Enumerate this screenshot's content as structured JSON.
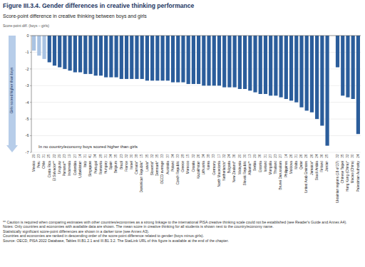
{
  "chart_data": {
    "type": "bar",
    "title": "Figure III.3.4. Gender differences in creative thinking performance",
    "subtitle": "Score-point difference in creative thinking between boys and girls",
    "ylabel": "Score-point diff. (boys – girls)",
    "annotations": [
      "Girls scored higher than boys",
      "In no country/economy boys scored higher than girls"
    ],
    "notes": [
      "** Caution is required when comparing estimates with other countries/economies as a strong linkage to the international PISA creative thinking scale could not be established (see Reader's Guide and Annex A4).",
      "Notes: Only countries and economies with available data are shown. The mean score in creative thinking for all students is shown next to the country/economy name.",
      "Statistically significant score-point differences are shown in a darker tone (see Annex A3).",
      "Countries and economies are ranked in descending order of the score-point difference related to gender (boys minus girls).",
      "Source: OECD, PISA 2022 Database, Tables III.B1.2.1 and III.B1.3.2. The StatLink URL of this figure is available at the end of the chapter."
    ],
    "categories": [
      "Mexico",
      "Peru",
      "Chile",
      "Costa Rica",
      "El Salvador**",
      "Uruguay",
      "Panama**",
      "Indonesia",
      "Colombia",
      "Uzbekistan",
      "Italy",
      "Singapore",
      "Portugal",
      "Romania",
      "Hungary",
      "Spain",
      "Belgium",
      "Brazil",
      "France",
      "Israel",
      "Canada*",
      "Dominican Republic*",
      "Latvia*",
      "Slovenia*",
      "Denmark*",
      "OECD average",
      "Australia",
      "Poland",
      "Czech Republic",
      "Greece",
      "Morocco",
      "Croatia",
      "Kazakhstan",
      "Lithuania",
      "Korea",
      "Germany",
      "North Macedonia",
      "Netherlands*",
      "Bulgaria",
      "New Zealand*",
      "Malaysia",
      "Slovak Republic",
      "Albania**",
      "Serbia",
      "Estonia",
      "Iceland",
      "Mongolia",
      "Thailand",
      "Brunei Darussalam",
      "Philippines",
      "Moldova",
      "Malta",
      "Qatar",
      "United Arab Emirates",
      "Jamaica*",
      "Saudi Arabia",
      "Finland",
      "Jordan",
      null,
      "Ukrainian regions (18 of 27)",
      "Chinese Taipei",
      "Hong Kong (China)*",
      "Macao (China)",
      "Palestinian Authority"
    ],
    "values": [
      -0.9,
      -1.2,
      -1.4,
      -1.6,
      -1.8,
      -1.9,
      -2.0,
      -2.1,
      -2.2,
      -2.2,
      -2.3,
      -2.3,
      -2.4,
      -2.4,
      -2.5,
      -2.5,
      -2.5,
      -2.6,
      -2.6,
      -2.6,
      -2.6,
      -2.6,
      -2.7,
      -2.7,
      -2.7,
      -2.7,
      -2.7,
      -2.8,
      -2.8,
      -2.8,
      -2.9,
      -2.9,
      -2.9,
      -3.0,
      -3.0,
      -3.0,
      -3.0,
      -3.1,
      -3.1,
      -3.1,
      -3.2,
      -3.2,
      -3.3,
      -3.4,
      -3.5,
      -3.5,
      -3.6,
      -3.6,
      -3.7,
      -3.8,
      -3.9,
      -4.0,
      -4.3,
      -4.5,
      -4.6,
      -5.0,
      -5.4,
      -6.6,
      null,
      -1.9,
      -3.6,
      -3.7,
      -3.8,
      -5.9
    ],
    "scores": [
      29,
      23,
      31,
      25,
      22,
      29,
      23,
      19,
      27,
      14,
      31,
      41,
      34,
      28,
      31,
      34,
      35,
      23,
      32,
      30,
      38,
      15,
      35,
      32,
      35,
      33,
      37,
      34,
      33,
      28,
      15,
      32,
      26,
      34,
      38,
      33,
      17,
      32,
      24,
      36,
      20,
      30,
      13,
      29,
      36,
      31,
      27,
      23,
      27,
      14,
      26,
      31,
      26,
      26,
      26,
      24,
      36,
      25,
      null,
      32,
      35,
      32,
      30,
      24
    ],
    "colors": [
      "#a9c3e3",
      "#a9c3e3",
      "#a9c3e3",
      "#2b5d9b",
      "#2b5d9b",
      "#2b5d9b",
      "#2b5d9b",
      "#2b5d9b",
      "#2b5d9b",
      "#2b5d9b",
      "#2b5d9b",
      "#2b5d9b",
      "#2b5d9b",
      "#2b5d9b",
      "#2b5d9b",
      "#2b5d9b",
      "#2b5d9b",
      "#2b5d9b",
      "#2b5d9b",
      "#2b5d9b",
      "#2b5d9b",
      "#2b5d9b",
      "#2b5d9b",
      "#2b5d9b",
      "#2b5d9b",
      "#2b5d9b",
      "#2b5d9b",
      "#2b5d9b",
      "#2b5d9b",
      "#2b5d9b",
      "#2b5d9b",
      "#2b5d9b",
      "#2b5d9b",
      "#2b5d9b",
      "#2b5d9b",
      "#2b5d9b",
      "#2b5d9b",
      "#2b5d9b",
      "#2b5d9b",
      "#2b5d9b",
      "#2b5d9b",
      "#2b5d9b",
      "#2b5d9b",
      "#2b5d9b",
      "#2b5d9b",
      "#2b5d9b",
      "#2b5d9b",
      "#2b5d9b",
      "#2b5d9b",
      "#2b5d9b",
      "#2b5d9b",
      "#2b5d9b",
      "#2b5d9b",
      "#2b5d9b",
      "#2b5d9b",
      "#2b5d9b",
      "#2b5d9b",
      "#2b5d9b",
      "#2b5d9b",
      "#2b5d9b",
      "#2b5d9b",
      "#2b5d9b",
      "#2b5d9b",
      "#2b5d9b"
    ],
    "ylim": [
      -7,
      0
    ],
    "yticks": [
      0,
      -1,
      -2,
      -3,
      -4,
      -5,
      -6,
      -7
    ],
    "grid": true
  }
}
